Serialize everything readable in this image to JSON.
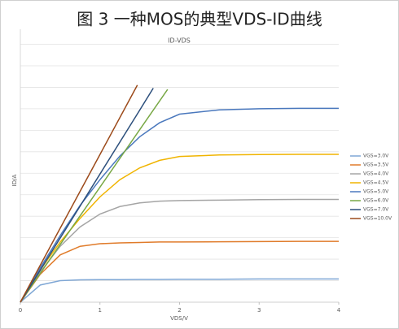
{
  "chart_data": {
    "type": "line",
    "title": "图 3 一种MOS的典型VDS-ID曲线",
    "subtitle": "ID-VDS",
    "x_label": "VDS/V",
    "y_label": "ID/A",
    "xlim": [
      0,
      4
    ],
    "xticks": [
      0,
      1,
      2,
      3,
      4
    ],
    "ylim": [
      0,
      12.7
    ],
    "ygrid": [
      1,
      2,
      3,
      4,
      5,
      6,
      7,
      8,
      9,
      10,
      11,
      12
    ],
    "grid": true,
    "legend": "right",
    "series": [
      {
        "name": "VGS=3.0V",
        "color": "#7fa7d5",
        "x": [
          0,
          0.25,
          0.5,
          0.75,
          1,
          1.25,
          1.5,
          1.75,
          2,
          2.5,
          3,
          3.5,
          4
        ],
        "values": [
          0,
          0.8,
          1.0,
          1.04,
          1.05,
          1.05,
          1.06,
          1.06,
          1.07,
          1.07,
          1.08,
          1.08,
          1.08
        ]
      },
      {
        "name": "VGS=3.5V",
        "color": "#e07b2a",
        "x": [
          0,
          0.25,
          0.5,
          0.75,
          1,
          1.25,
          1.5,
          1.75,
          2,
          2.5,
          3,
          3.5,
          4
        ],
        "values": [
          0,
          1.3,
          2.2,
          2.6,
          2.72,
          2.76,
          2.78,
          2.8,
          2.8,
          2.81,
          2.82,
          2.83,
          2.83
        ]
      },
      {
        "name": "VGS=4.0V",
        "color": "#a5a5a5",
        "x": [
          0,
          0.25,
          0.5,
          0.75,
          1,
          1.25,
          1.5,
          1.75,
          2,
          2.5,
          3,
          3.5,
          4
        ],
        "values": [
          0,
          1.4,
          2.6,
          3.5,
          4.1,
          4.45,
          4.62,
          4.7,
          4.73,
          4.75,
          4.77,
          4.78,
          4.78
        ]
      },
      {
        "name": "VGS=4.5V",
        "color": "#f0b400",
        "x": [
          0,
          0.25,
          0.5,
          0.75,
          1,
          1.25,
          1.5,
          1.75,
          2,
          2.5,
          3,
          3.5,
          4
        ],
        "values": [
          0,
          1.5,
          2.8,
          3.9,
          4.9,
          5.7,
          6.25,
          6.6,
          6.78,
          6.85,
          6.87,
          6.88,
          6.88
        ]
      },
      {
        "name": "VGS=5.0V",
        "color": "#4a78bd",
        "x": [
          0,
          0.25,
          0.5,
          0.75,
          1,
          1.25,
          1.5,
          1.75,
          2,
          2.5,
          3,
          3.5,
          4
        ],
        "values": [
          0,
          1.6,
          3.1,
          4.5,
          5.7,
          6.8,
          7.7,
          8.35,
          8.75,
          8.95,
          9.0,
          9.02,
          9.02
        ]
      },
      {
        "name": "VGS=6.0V",
        "color": "#78a845",
        "x": [
          0,
          0.5,
          1,
          1.5,
          1.85
        ],
        "values": [
          0,
          2.68,
          5.35,
          8.03,
          9.9
        ]
      },
      {
        "name": "VGS=7.0V",
        "color": "#2c4f7c",
        "x": [
          0,
          0.5,
          1,
          1.5,
          1.67
        ],
        "values": [
          0,
          2.98,
          5.96,
          8.94,
          9.96
        ]
      },
      {
        "name": "VGS=10.0V",
        "color": "#9c4a1a",
        "x": [
          0,
          0.5,
          1,
          1.47
        ],
        "values": [
          0,
          3.44,
          6.87,
          10.1
        ]
      }
    ]
  }
}
